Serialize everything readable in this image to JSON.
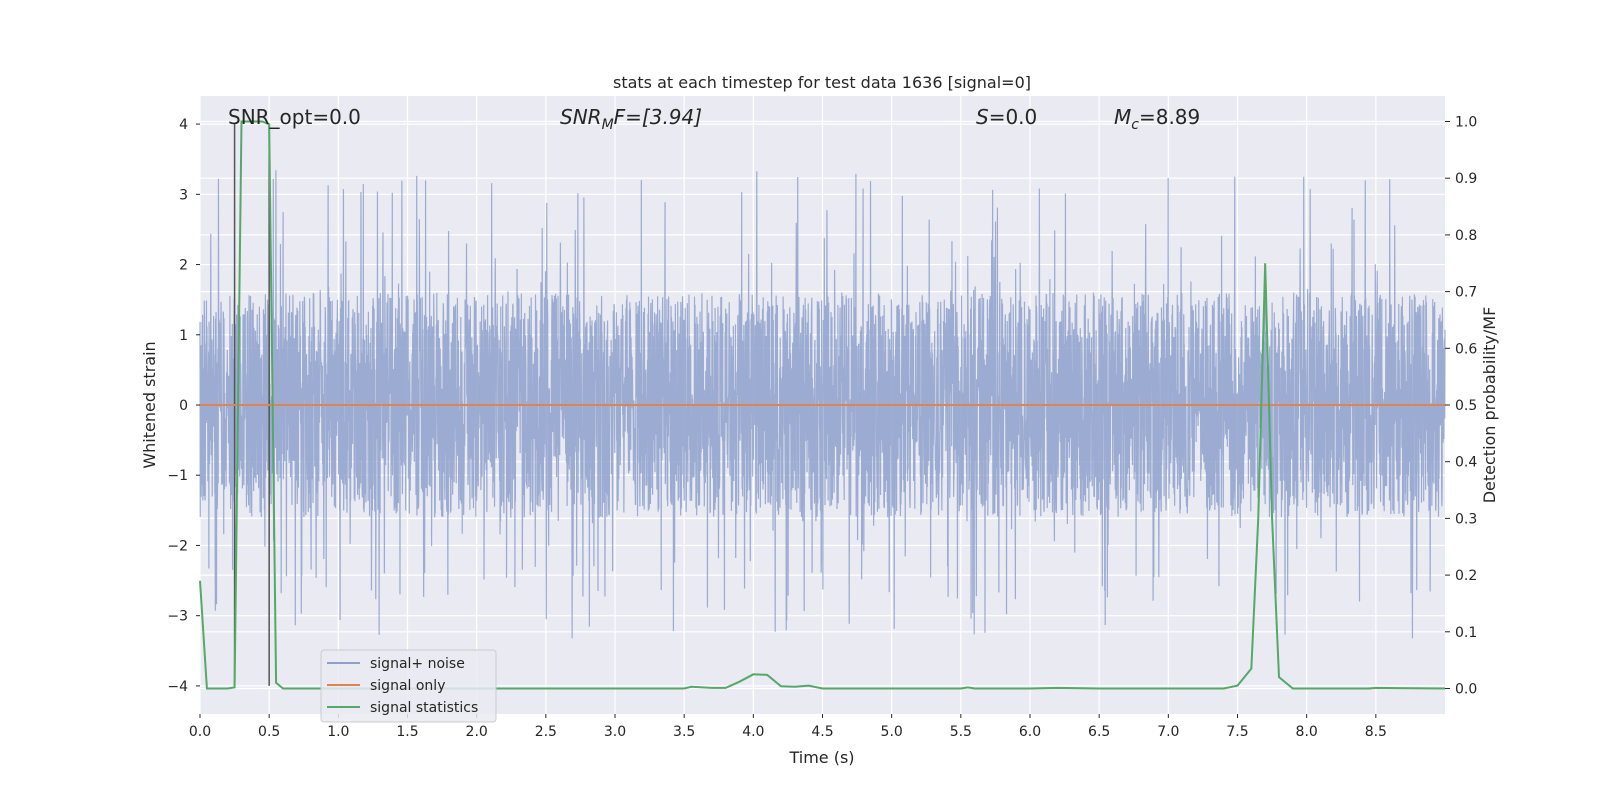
{
  "chart_data": {
    "type": "line",
    "title": "stats at each timestep for test data 1636 [signal=0]",
    "xlabel": "Time (s)",
    "ylabel_left": "Whitened strain",
    "ylabel_right": "Detection probability/MF",
    "xlim": [
      0,
      9
    ],
    "ylim_left": [
      -4.4,
      4.4
    ],
    "ylim_right": [
      -0.045,
      1.045
    ],
    "x_ticks": [
      0.0,
      0.5,
      1.0,
      1.5,
      2.0,
      2.5,
      3.0,
      3.5,
      4.0,
      4.5,
      5.0,
      5.5,
      6.0,
      6.5,
      7.0,
      7.5,
      8.0,
      8.5
    ],
    "x_tick_labels": [
      "0.0",
      "0.5",
      "1.0",
      "1.5",
      "2.0",
      "2.5",
      "3.0",
      "3.5",
      "4.0",
      "4.5",
      "5.0",
      "5.5",
      "6.0",
      "6.5",
      "7.0",
      "7.5",
      "8.0",
      "8.5"
    ],
    "y_left_ticks": [
      4,
      3,
      2,
      1,
      0,
      -1,
      -2,
      -3,
      -4
    ],
    "y_left_tick_labels": [
      "4",
      "3",
      "2",
      "1",
      "0",
      "−1",
      "−2",
      "−3",
      "−4"
    ],
    "y_right_ticks": [
      1.0,
      0.9,
      0.8,
      0.7,
      0.6,
      0.5,
      0.4,
      0.3,
      0.2,
      0.1,
      0.0
    ],
    "y_right_tick_labels": [
      "1.0",
      "0.9",
      "0.8",
      "0.7",
      "0.6",
      "0.5",
      "0.4",
      "0.3",
      "0.2",
      "0.1",
      "0.0"
    ],
    "annotations": {
      "snr_opt": "SNR_opt=0.0",
      "snr_mf_main": "SNR",
      "snr_mf_sub": "M",
      "snr_mf_rest": "F=[3.94]",
      "s_main": "S",
      "s_rest": "=0.0",
      "mc_main": "M",
      "mc_sub": "c",
      "mc_rest": "=8.89"
    },
    "legend": {
      "location": "lower-left",
      "entries": [
        {
          "label": "signal+ noise",
          "color": "#8da0cb"
        },
        {
          "label": "signal only",
          "color": "#dd8452"
        },
        {
          "label": "signal statistics",
          "color": "#55a868"
        }
      ]
    },
    "series": [
      {
        "name": "signal+ noise",
        "axis": "left",
        "color": "#8da0cb",
        "description": "dense whitened strain noise, approx. within ±1.6 with spikes up to ±3.3",
        "envelope": 1.6,
        "max_spike": 3.35,
        "seed": 1636
      },
      {
        "name": "signal only",
        "axis": "left",
        "color": "#dd8452",
        "x": [
          0,
          9
        ],
        "y": [
          0,
          0
        ]
      },
      {
        "name": "signal statistics",
        "axis": "right",
        "color": "#55a868",
        "x": [
          0.0,
          0.05,
          0.1,
          0.2,
          0.25,
          0.28,
          0.3,
          0.45,
          0.5,
          0.55,
          0.6,
          0.8,
          1.0,
          2.0,
          3.0,
          3.5,
          3.55,
          3.7,
          3.8,
          3.9,
          4.0,
          4.1,
          4.2,
          4.3,
          4.4,
          4.5,
          5.0,
          5.5,
          5.55,
          5.6,
          6.0,
          6.2,
          6.5,
          7.0,
          7.4,
          7.5,
          7.6,
          7.65,
          7.7,
          7.75,
          7.8,
          7.9,
          8.0,
          8.45,
          8.5,
          9.0
        ],
        "y": [
          0.19,
          0.0,
          0.0,
          0.0,
          0.002,
          0.6,
          1.0,
          1.0,
          0.995,
          0.01,
          0.0,
          0.0,
          0.0,
          0.0,
          0.0,
          0.0,
          0.003,
          0.001,
          0.001,
          0.012,
          0.025,
          0.024,
          0.004,
          0.003,
          0.005,
          0.0,
          0.0,
          0.0,
          0.002,
          0.0,
          0.0,
          0.001,
          0.0,
          0.0,
          0.0,
          0.005,
          0.035,
          0.3,
          0.75,
          0.3,
          0.02,
          0.0,
          0.0,
          0.0,
          0.001,
          0.0
        ]
      }
    ],
    "vertical_lines": [
      {
        "x": 0.25,
        "y_from": -4.0,
        "y_to": 4.0,
        "color": "#555555"
      },
      {
        "x": 0.5,
        "y_from": -4.0,
        "y_to": 4.0,
        "color": "#555555"
      }
    ]
  }
}
